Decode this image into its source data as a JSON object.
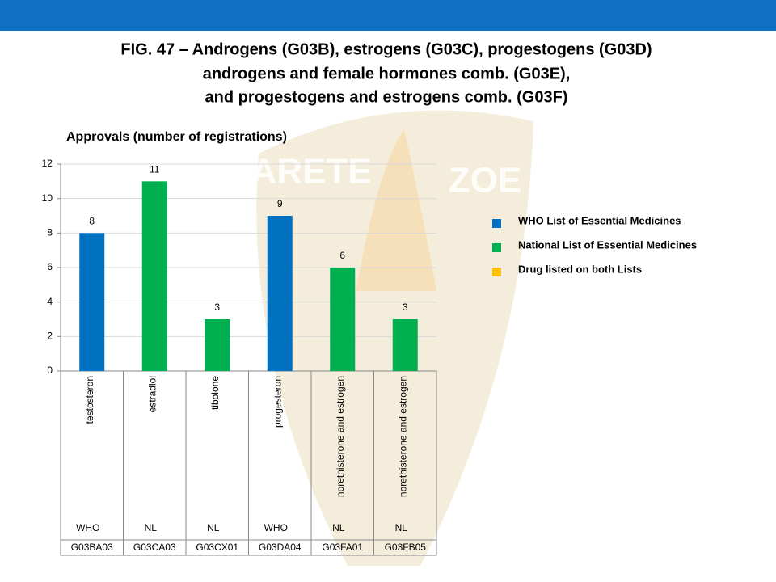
{
  "chart_data": {
    "type": "bar",
    "title": [
      "FIG. 47 – Androgens (G03B), estrogens (G03C), progestogens (G03D)",
      "androgens and female hormones comb. (G03E),",
      "and progestogens and estrogens comb. (G03F)"
    ],
    "subtitle": "Approvals (number of registrations)",
    "categories": [
      "testosteron",
      "estradiol",
      "tibolone",
      "progesteron",
      "norethisterone and estrogen",
      "norethisterone and estrogen"
    ],
    "lists": [
      "WHO",
      "NL",
      "NL",
      "WHO",
      "NL",
      "NL"
    ],
    "codes": [
      "G03BA03",
      "G03CA03",
      "G03CX01",
      "G03DA04",
      "G03FA01",
      "G03FB05"
    ],
    "values": [
      8,
      11,
      3,
      9,
      6,
      3
    ],
    "colors": [
      "#0070c0",
      "#00b050",
      "#00b050",
      "#0070c0",
      "#00b050",
      "#00b050"
    ],
    "ylim": [
      0,
      12
    ],
    "yticks": [
      0,
      2,
      4,
      6,
      8,
      10,
      12
    ],
    "grid": true,
    "legend": [
      {
        "name": "WHO List of Essential Medicines",
        "color": "#0070c0"
      },
      {
        "name": "National List of Essential Medicines",
        "color": "#00b050"
      },
      {
        "name": "Drug listed on both Lists",
        "color": "#ffc000"
      }
    ],
    "watermark": [
      "ARETE",
      "ZOE"
    ]
  }
}
